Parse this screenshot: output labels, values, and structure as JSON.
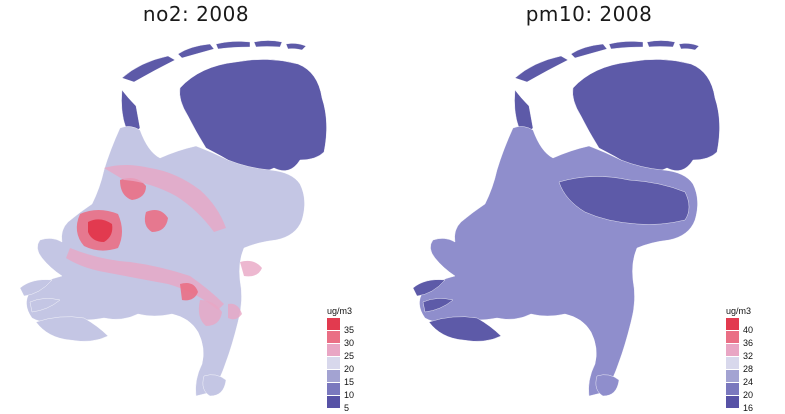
{
  "maps": [
    {
      "id": "no2",
      "title": "no2: 2008",
      "base_color": "#c4c6e4",
      "north_color": "#5d5aa8",
      "legend": {
        "unit": "ug/m3",
        "items": [
          {
            "label": "35",
            "color": "#e23a4f"
          },
          {
            "label": "30",
            "color": "#ea6f85"
          },
          {
            "label": "25",
            "color": "#e9a6c4"
          },
          {
            "label": "20",
            "color": "#d8d8ec"
          },
          {
            "label": "15",
            "color": "#a3a3d2"
          },
          {
            "label": "10",
            "color": "#7a78be"
          },
          {
            "label": "5",
            "color": "#5752a6"
          }
        ]
      }
    },
    {
      "id": "pm10",
      "title": "pm10: 2008",
      "base_color": "#8f8ecc",
      "north_color": "#5d5aa8",
      "legend": {
        "unit": "ug/m3",
        "items": [
          {
            "label": "40",
            "color": "#e23a4f"
          },
          {
            "label": "36",
            "color": "#ea6f85"
          },
          {
            "label": "32",
            "color": "#e9a6c4"
          },
          {
            "label": "28",
            "color": "#d8d8ec"
          },
          {
            "label": "24",
            "color": "#a3a3d2"
          },
          {
            "label": "20",
            "color": "#7a78be"
          },
          {
            "label": "16",
            "color": "#5752a6"
          }
        ]
      }
    }
  ]
}
